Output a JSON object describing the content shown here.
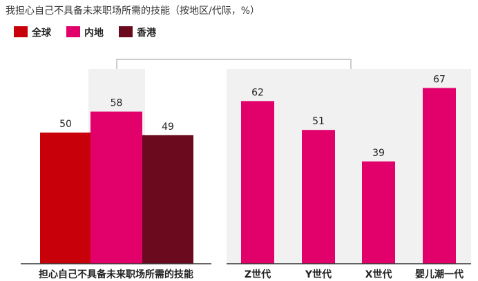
{
  "chart_data": {
    "type": "bar",
    "title": "我担心自己不具备未来职场所需的技能（按地区/代际，%）",
    "legend": [
      "全球",
      "内地",
      "香港"
    ],
    "legend_placement": "top-left",
    "grid": false,
    "ylim": [
      0,
      75
    ],
    "colors": {
      "global": "#c8000a",
      "mainland": "#e2006a",
      "hongkong": "#6b0a1e",
      "panel_bg": "#f1f1f1",
      "connector": "#bbbbbb",
      "axis": "#333333"
    },
    "panels": [
      {
        "categories": [
          "担心自己不具备未来职场所需的技能"
        ],
        "series": [
          {
            "name": "全球",
            "values": [
              50
            ]
          },
          {
            "name": "内地",
            "values": [
              58
            ]
          },
          {
            "name": "香港",
            "values": [
              49
            ]
          }
        ]
      },
      {
        "categories": [
          "Z世代",
          "Y世代",
          "X世代",
          "婴儿潮一代"
        ],
        "series": [
          {
            "name": "内地",
            "values": [
              62,
              51,
              39,
              67
            ]
          }
        ]
      }
    ]
  }
}
